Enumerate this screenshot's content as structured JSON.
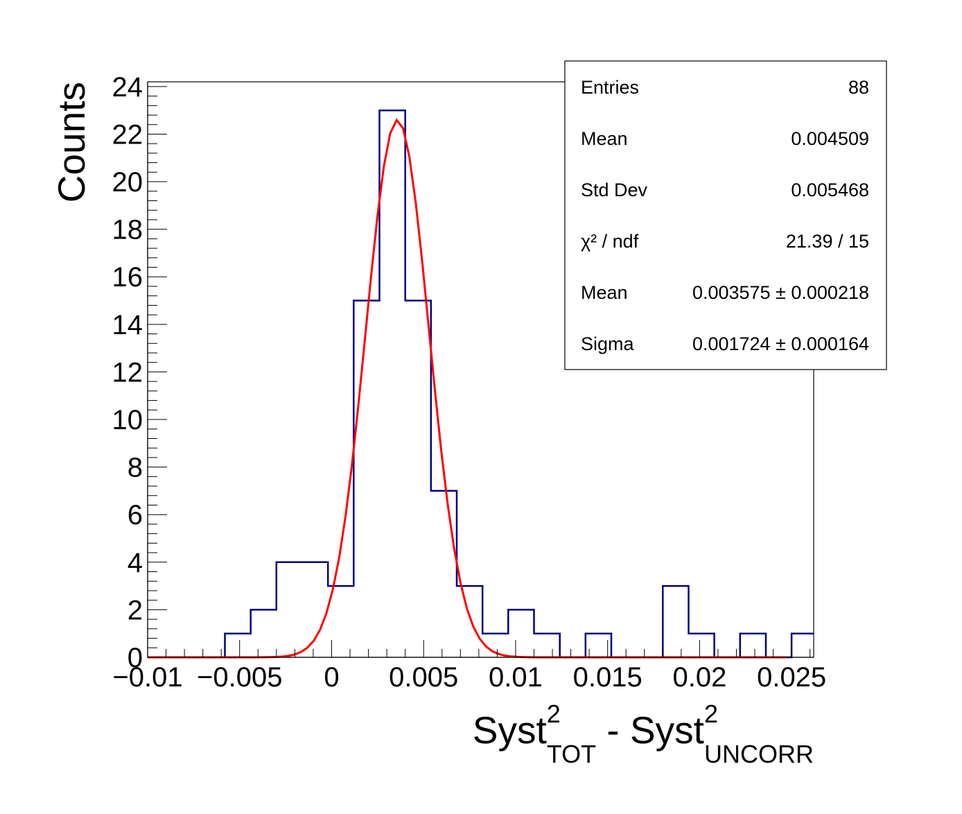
{
  "chart_data": {
    "type": "histogram",
    "xlabel": {
      "parts": [
        {
          "text": "Syst",
          "sup": "2",
          "sub": "TOT"
        },
        {
          "text": " - Syst",
          "sup": "2",
          "sub": "UNCORR"
        }
      ]
    },
    "ylabel": "Counts",
    "xlim": [
      -0.01,
      0.0262
    ],
    "ylim": [
      0,
      24.2
    ],
    "x_ticks": [
      {
        "value": -0.01,
        "label": "−0.01"
      },
      {
        "value": -0.005,
        "label": "−0.005"
      },
      {
        "value": 0,
        "label": "0"
      },
      {
        "value": 0.005,
        "label": "0.005"
      },
      {
        "value": 0.01,
        "label": "0.01"
      },
      {
        "value": 0.015,
        "label": "0.015"
      },
      {
        "value": 0.02,
        "label": "0.02"
      },
      {
        "value": 0.025,
        "label": "0.025"
      }
    ],
    "y_ticks": [
      {
        "value": 0,
        "label": "0"
      },
      {
        "value": 2,
        "label": "2"
      },
      {
        "value": 4,
        "label": "4"
      },
      {
        "value": 6,
        "label": "6"
      },
      {
        "value": 8,
        "label": "8"
      },
      {
        "value": 10,
        "label": "10"
      },
      {
        "value": 12,
        "label": "12"
      },
      {
        "value": 14,
        "label": "14"
      },
      {
        "value": 16,
        "label": "16"
      },
      {
        "value": 18,
        "label": "18"
      },
      {
        "value": 20,
        "label": "20"
      },
      {
        "value": 22,
        "label": "22"
      },
      {
        "value": 24,
        "label": "24"
      }
    ],
    "histogram": {
      "color": "#000080",
      "bin_edges": [
        -0.01,
        -0.0086,
        -0.0072,
        -0.0058,
        -0.0044,
        -0.003,
        -0.0016,
        -0.0002,
        0.0012,
        0.0026,
        0.004,
        0.0054,
        0.0068,
        0.0082,
        0.0096,
        0.011,
        0.0124,
        0.0138,
        0.0152,
        0.0166,
        0.018,
        0.0194,
        0.0208,
        0.0222,
        0.0236,
        0.025,
        0.0264
      ],
      "counts": [
        0,
        0,
        0,
        1,
        2,
        4,
        4,
        3,
        15,
        23,
        15,
        7,
        3,
        1,
        2,
        1,
        0,
        1,
        0,
        0,
        3,
        1,
        0,
        1,
        0,
        1
      ]
    },
    "fit": {
      "type": "gaus",
      "color": "#ff0000",
      "amplitude": 22.6,
      "mean": 0.003575,
      "sigma": 0.001724,
      "x_range": [
        -0.01,
        0.0247
      ]
    },
    "stats_box": {
      "rows": [
        {
          "label": "Entries",
          "value": "88"
        },
        {
          "label": "Mean",
          "value": "0.004509"
        },
        {
          "label": "Std Dev",
          "value": "0.005468"
        },
        {
          "label": "χ² / ndf",
          "value": "21.39 / 15"
        },
        {
          "label": "Mean",
          "value": "0.003575 ± 0.000218"
        },
        {
          "label": "Sigma",
          "value": "0.001724 ± 0.000164"
        }
      ]
    }
  }
}
